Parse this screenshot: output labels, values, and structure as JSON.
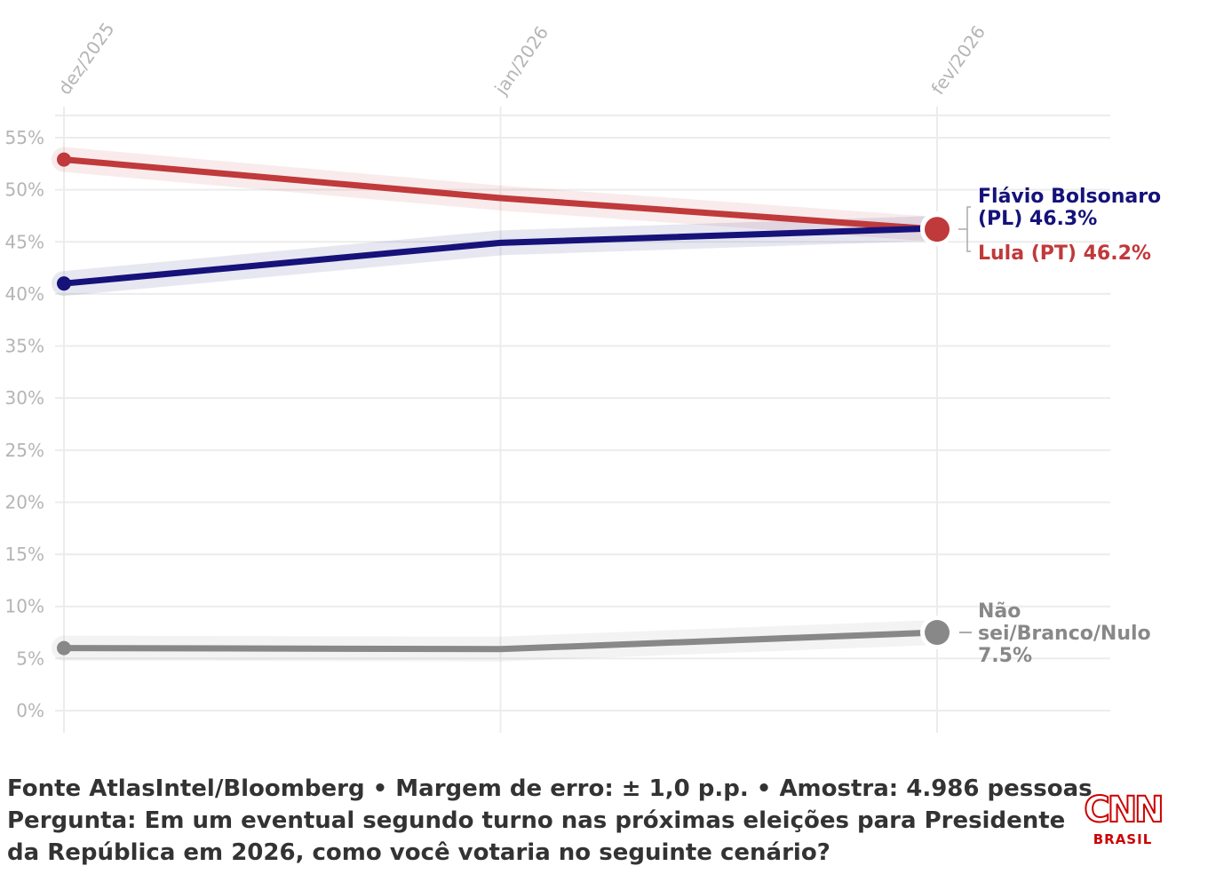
{
  "chart_data": {
    "type": "line",
    "x": [
      "dez/2025",
      "jan/2026",
      "fev/2026"
    ],
    "ylim": [
      0,
      55
    ],
    "yticks": [
      0,
      5,
      10,
      15,
      20,
      25,
      30,
      35,
      40,
      45,
      50,
      55
    ],
    "ytick_labels": [
      "0%",
      "5%",
      "10%",
      "15%",
      "20%",
      "25%",
      "30%",
      "35%",
      "40%",
      "45%",
      "50%",
      "55%"
    ],
    "grid": true,
    "series": [
      {
        "name": "Lula (PT)",
        "color": "#c0393b",
        "values": [
          52.9,
          49.2,
          46.2
        ],
        "label_lines": [
          "Lula (PT) 46.2%"
        ]
      },
      {
        "name": "Flávio Bolsonaro (PL)",
        "color": "#15127a",
        "values": [
          41.0,
          44.9,
          46.3
        ],
        "label_lines": [
          "Flávio Bolsonaro",
          "(PL) 46.3%"
        ]
      },
      {
        "name": "Não sei/Branco/Nulo",
        "color": "#888888",
        "values": [
          6.0,
          5.9,
          7.5
        ],
        "label_lines": [
          "Não",
          "sei/Branco/Nulo",
          "7.5%"
        ]
      }
    ]
  },
  "footer": {
    "line1": "Fonte AtlasIntel/Bloomberg • Margem de erro: ± 1,0 p.p. • Amostra: 4.986 pessoas",
    "line2": "Pergunta: Em um eventual segundo turno nas próximas eleições para Presidente",
    "line3": "da República em 2026, como você votaria no seguinte cenário?"
  },
  "logo": {
    "brand": "CNN",
    "sub": "BRASIL"
  }
}
